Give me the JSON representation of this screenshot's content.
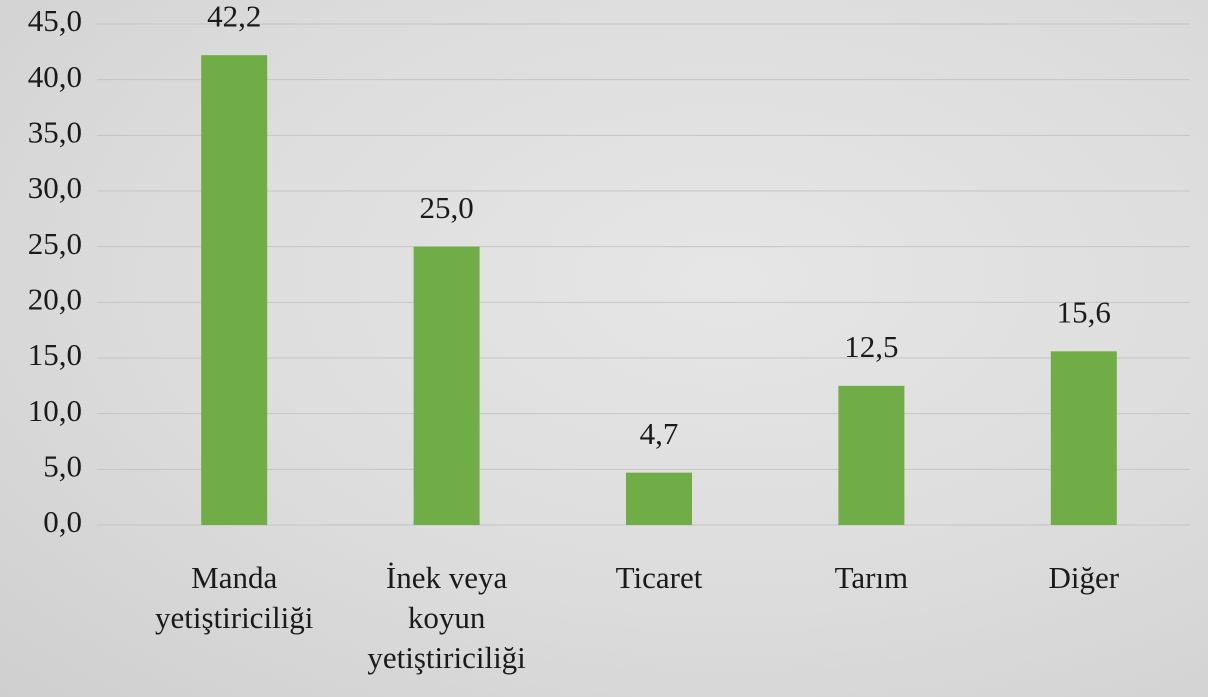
{
  "chart_data": {
    "type": "bar",
    "categories": [
      "Manda yetiştiriciliği",
      "İnek veya koyun yetiştiriciliği",
      "Ticaret",
      "Tarım",
      "Diğer"
    ],
    "values": [
      42.2,
      25.0,
      4.7,
      12.5,
      15.6
    ],
    "value_labels": [
      "42,2",
      "25,0",
      "4,7",
      "12,5",
      "15,6"
    ],
    "color": "#70ad47",
    "ylim": [
      0,
      45
    ],
    "yticks": [
      {
        "value": 0,
        "label": "0,0"
      },
      {
        "value": 5,
        "label": "5,0"
      },
      {
        "value": 10,
        "label": "10,0"
      },
      {
        "value": 15,
        "label": "15,0"
      },
      {
        "value": 20,
        "label": "20,0"
      },
      {
        "value": 25,
        "label": "25,0"
      },
      {
        "value": 30,
        "label": "30,0"
      },
      {
        "value": 35,
        "label": "35,0"
      },
      {
        "value": 40,
        "label": "40,0"
      },
      {
        "value": 45,
        "label": "45,0"
      }
    ],
    "grid": true
  }
}
